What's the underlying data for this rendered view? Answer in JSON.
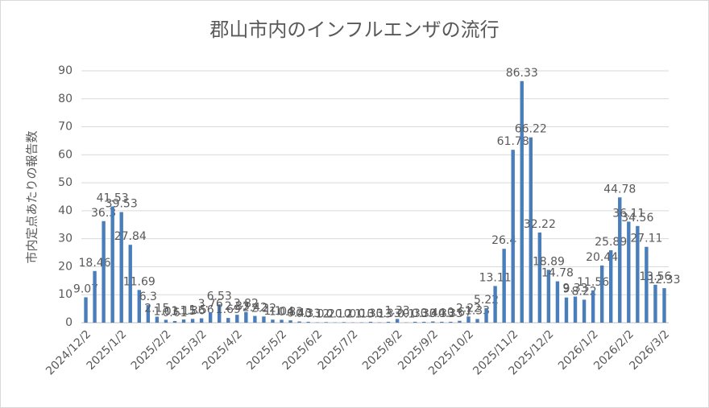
{
  "chart_data": {
    "type": "bar",
    "title": "郡山市内のインフルエンザの流行",
    "y_label": "市内定点あたりの報告数",
    "categories": [
      "2024/12/2",
      null,
      null,
      null,
      "2025/1/2",
      null,
      null,
      null,
      null,
      "2025/2/2",
      null,
      null,
      null,
      "2025/3/2",
      null,
      null,
      null,
      "2025/4/2",
      null,
      null,
      null,
      null,
      "2025/5/2",
      null,
      null,
      null,
      "2025/6/2",
      null,
      null,
      null,
      "2025/7/2",
      null,
      null,
      null,
      null,
      "2025/8/2",
      null,
      null,
      null,
      "2025/9/2",
      null,
      null,
      null,
      "2025/10/2",
      null,
      null,
      null,
      null,
      "2025/11/2",
      null,
      null,
      null,
      "2025/12/2",
      null,
      null,
      null,
      null,
      "2026/1/2",
      null,
      null,
      null,
      "2026/2/2",
      null,
      null,
      null,
      "2026/3/2"
    ],
    "values": [
      9.07,
      18.46,
      36.3,
      41.53,
      39.53,
      27.84,
      11.69,
      6.3,
      2.15,
      1.03,
      0.61,
      1.15,
      1.36,
      1.56,
      3.76,
      6.53,
      1.69,
      2.83,
      3.82,
      2.42,
      2.22,
      1.1,
      1.04,
      0.83,
      0.43,
      0.33,
      0.12,
      0.2,
      0.1,
      0.2,
      0.1,
      0.13,
      0.33,
      0.13,
      0.33,
      1.33,
      0.1,
      0.33,
      0.33,
      0.44,
      0.33,
      0.33,
      0.67,
      2.22,
      1.33,
      5.22,
      13.11,
      26.4,
      61.78,
      86.33,
      66.22,
      32.22,
      18.89,
      14.78,
      9,
      9.33,
      8.22,
      11.56,
      20.44,
      25.89,
      44.78,
      36.11,
      34.56,
      27.11,
      13.56,
      12.33
    ],
    "color": "#4a7ebb",
    "ylim": [
      0,
      90
    ],
    "yticks": [
      0,
      10,
      20,
      30,
      40,
      50,
      60,
      70,
      80,
      90
    ],
    "grid": true
  }
}
